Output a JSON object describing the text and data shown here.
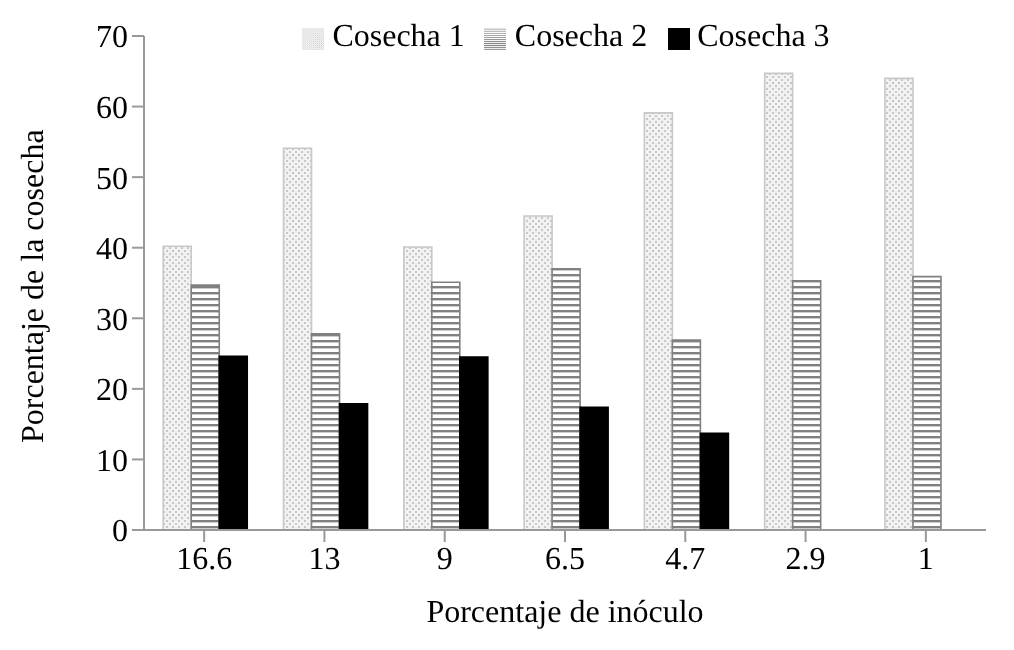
{
  "chart_data": {
    "type": "bar",
    "xlabel": "Porcentaje de inóculo",
    "ylabel": "Porcentaje de la cosecha",
    "categories": [
      "16.6",
      "13",
      "9",
      "6.5",
      "4.7",
      "2.9",
      "1"
    ],
    "series": [
      {
        "name": "Cosecha 1",
        "color": "#c8c8c8",
        "values": [
          40.2,
          54.1,
          40.1,
          44.5,
          59.1,
          64.7,
          64.0
        ]
      },
      {
        "name": "Cosecha 2",
        "color": "#808080",
        "values": [
          34.7,
          27.8,
          35.1,
          37.0,
          26.9,
          35.3,
          35.9
        ]
      },
      {
        "name": "Cosecha 3",
        "color": "#000000",
        "values": [
          24.6,
          17.9,
          24.5,
          17.4,
          13.7,
          null,
          null
        ]
      }
    ],
    "ylim": [
      0,
      70
    ],
    "yticks": [
      0,
      10,
      20,
      30,
      40,
      50,
      60,
      70
    ],
    "legend": "top"
  }
}
